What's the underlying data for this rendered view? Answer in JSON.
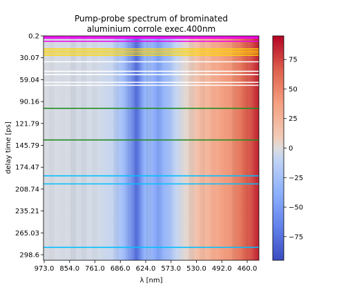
{
  "chart_data": {
    "type": "heatmap",
    "title_lines": [
      "Pump-probe spectrum of brominated",
      "aluminium corrole exec.400nm"
    ],
    "xlabel": "λ [nm]",
    "ylabel": "delay time [ps]",
    "x_ticks": [
      "973.0",
      "854.0",
      "761.0",
      "686.0",
      "624.0",
      "573.0",
      "530.0",
      "492.0",
      "460.0"
    ],
    "y_ticks": [
      "0.2",
      "30.07",
      "59.04",
      "90.16",
      "121.79",
      "145.79",
      "174.47",
      "208.74",
      "235.21",
      "265.03",
      "298.6"
    ],
    "y_range": [
      0.2,
      298.6
    ],
    "colorbar": {
      "colormap": "coolwarm",
      "range": [
        -95,
        95
      ],
      "ticks": [
        75,
        50,
        25,
        0,
        -25,
        -50,
        -75
      ],
      "tick_labels": [
        "75",
        "50",
        "25",
        "0",
        "−25",
        "−50",
        "−75"
      ]
    },
    "signal_profile": [
      {
        "x_frac": 0.0,
        "value": -2
      },
      {
        "x_frac": 0.25,
        "value": -4
      },
      {
        "x_frac": 0.32,
        "value": -8
      },
      {
        "x_frac": 0.38,
        "value": -30
      },
      {
        "x_frac": 0.43,
        "value": -78
      },
      {
        "x_frac": 0.47,
        "value": -35
      },
      {
        "x_frac": 0.49,
        "value": -28
      },
      {
        "x_frac": 0.53,
        "value": -45
      },
      {
        "x_frac": 0.58,
        "value": -25
      },
      {
        "x_frac": 0.62,
        "value": -8
      },
      {
        "x_frac": 0.66,
        "value": 3
      },
      {
        "x_frac": 0.72,
        "value": 18
      },
      {
        "x_frac": 0.8,
        "value": 32
      },
      {
        "x_frac": 0.88,
        "value": 45
      },
      {
        "x_frac": 0.94,
        "value": 65
      },
      {
        "x_frac": 1.0,
        "value": 85
      }
    ],
    "highlight_lines": [
      {
        "delay": 0.3,
        "color": "#ee00ee"
      },
      {
        "delay": 2.0,
        "color": "#ee00ee"
      },
      {
        "delay": 3.5,
        "color": "#ee00ee"
      },
      {
        "delay": 7.5,
        "color": "#ee00ee"
      },
      {
        "delay": 18.0,
        "color": "#ffd700"
      },
      {
        "delay": 21.0,
        "color": "#ffd700"
      },
      {
        "delay": 23.5,
        "color": "#ffd700"
      },
      {
        "delay": 26.5,
        "color": "#ffd700"
      },
      {
        "delay": 35.5,
        "color": "#ffffff"
      },
      {
        "delay": 48.5,
        "color": "#ffffff"
      },
      {
        "delay": 53.0,
        "color": "#ffffff"
      },
      {
        "delay": 63.5,
        "color": "#ffffff"
      },
      {
        "delay": 67.5,
        "color": "#ffffff"
      },
      {
        "delay": 99.0,
        "color": "#228b22"
      },
      {
        "delay": 142.0,
        "color": "#228b22"
      },
      {
        "delay": 191.0,
        "color": "#00bfff"
      },
      {
        "delay": 202.0,
        "color": "#00bfff"
      },
      {
        "delay": 288.5,
        "color": "#00bfff"
      }
    ]
  }
}
